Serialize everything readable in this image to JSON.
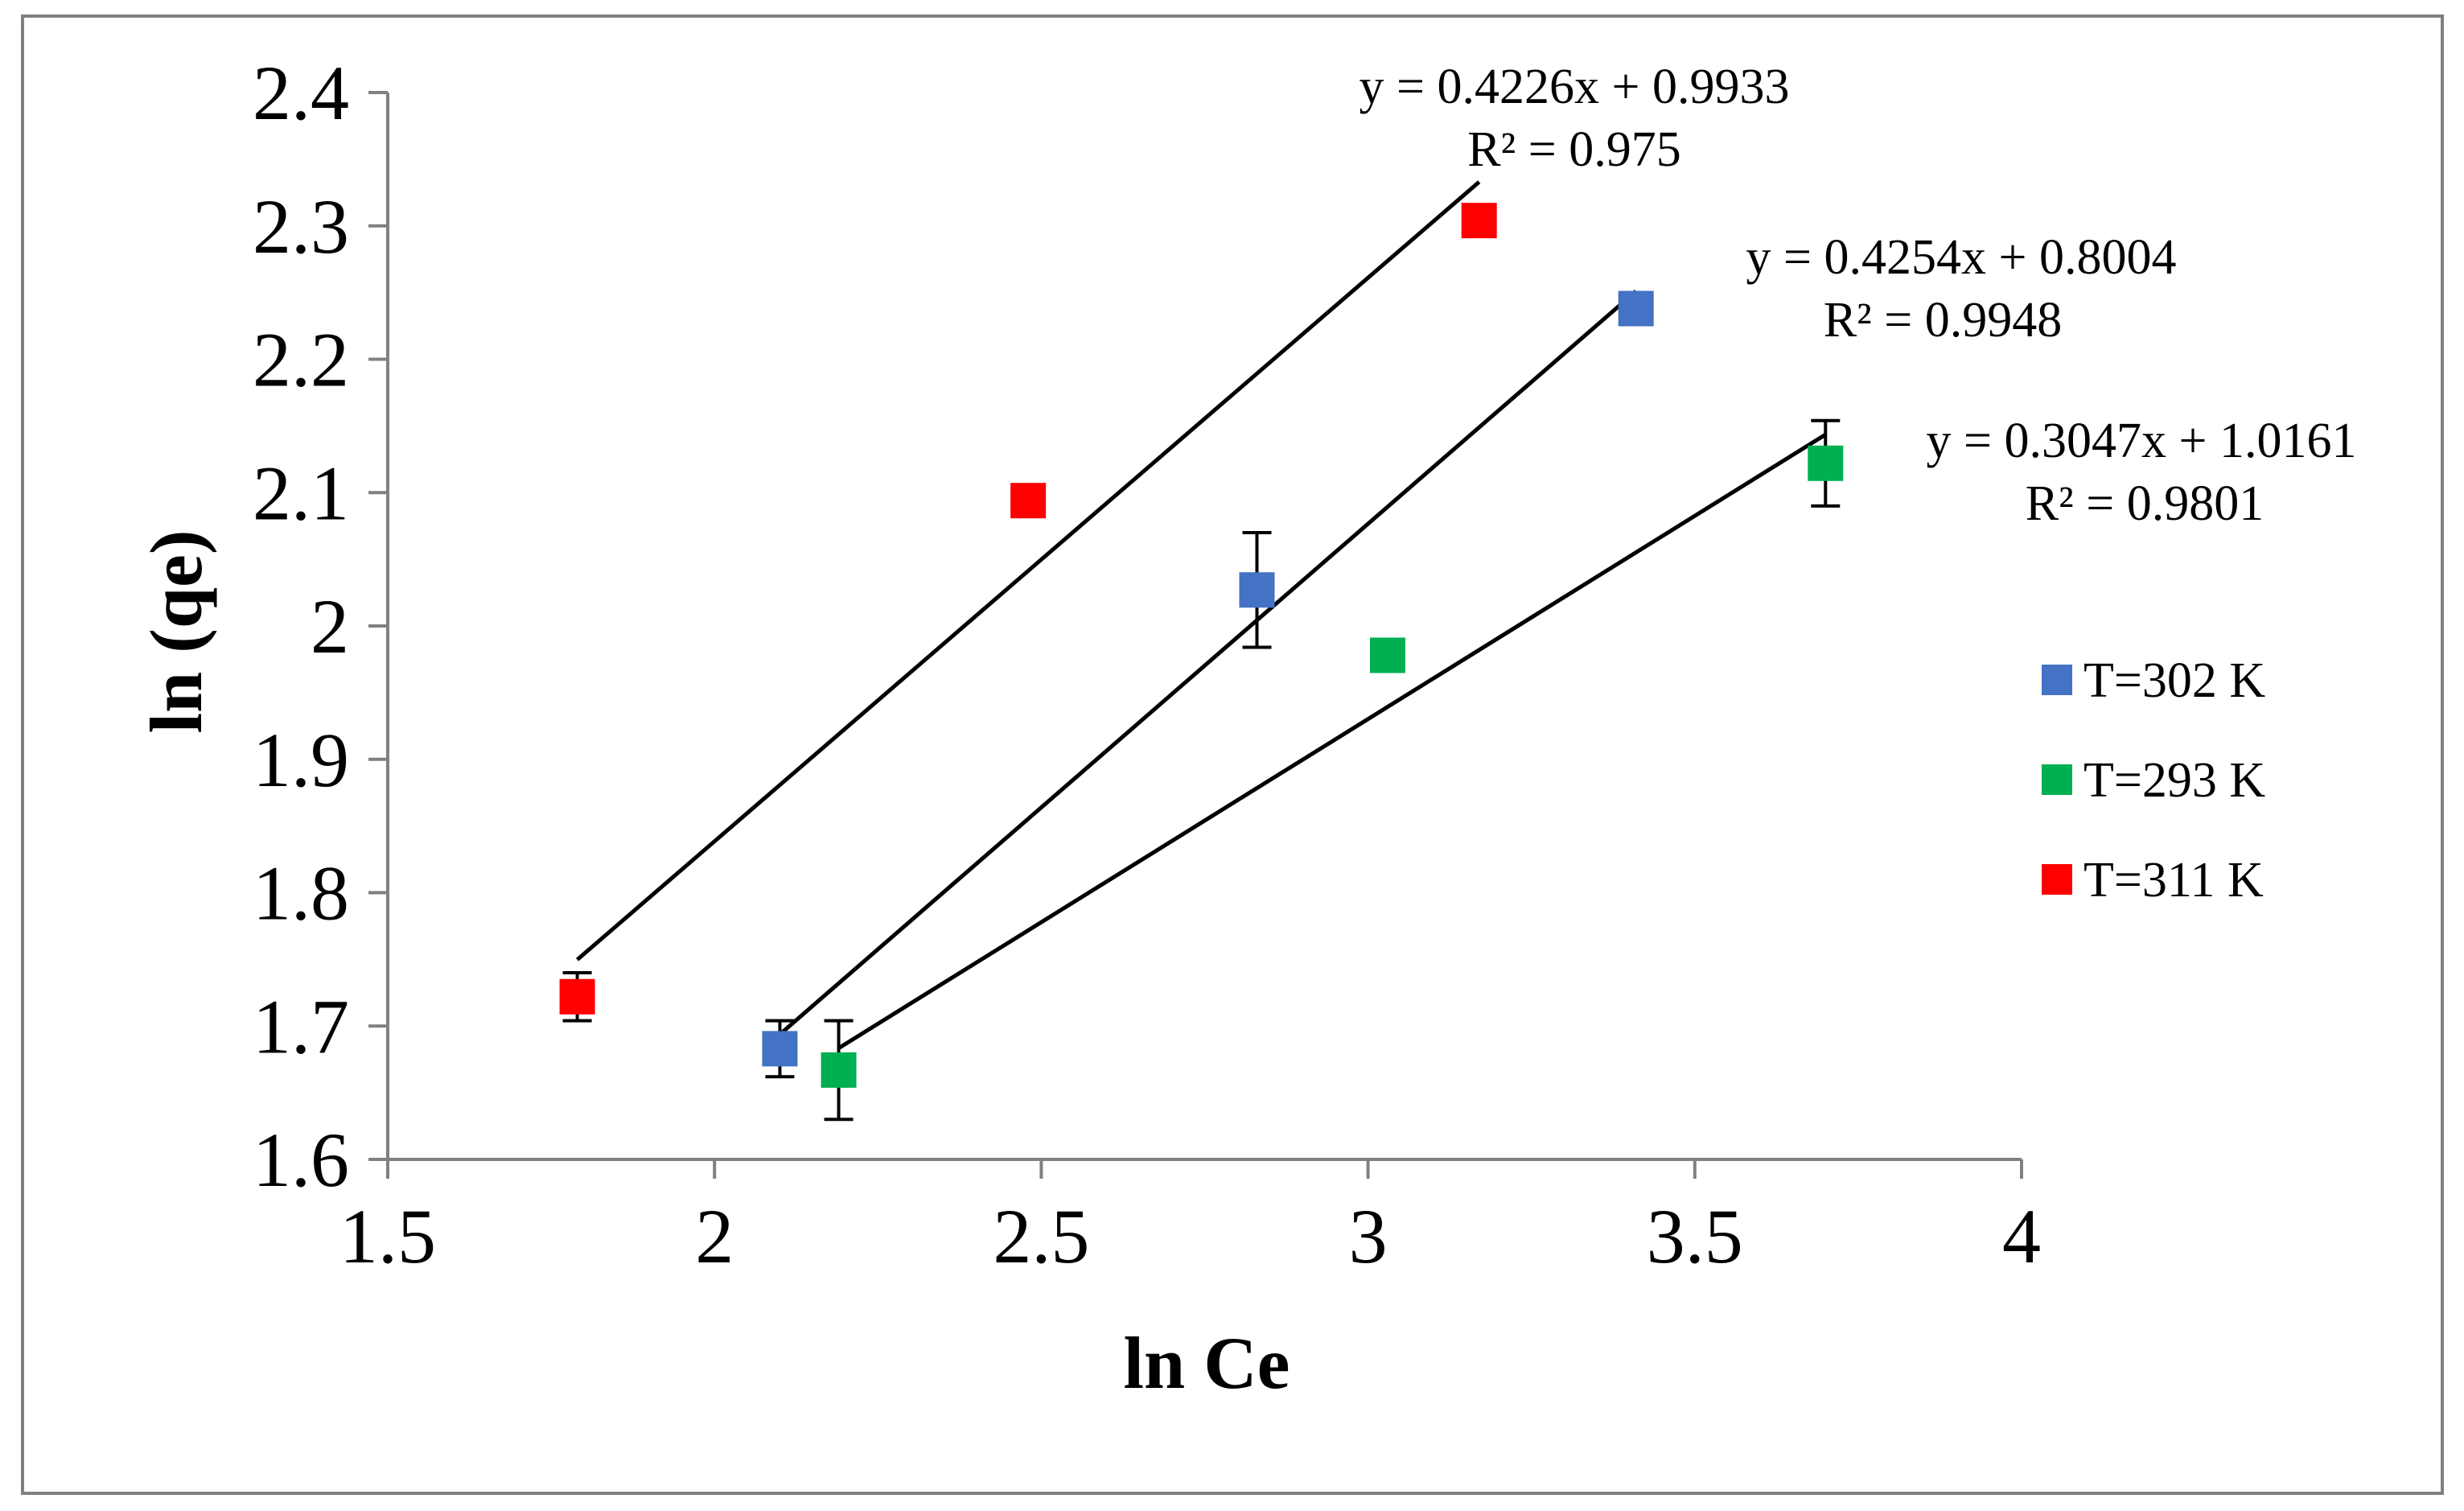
{
  "chart_data": {
    "type": "scatter",
    "title": "",
    "xlabel": "ln Ce",
    "ylabel": "ln (qe)",
    "xlim": [
      1.5,
      4
    ],
    "ylim": [
      1.6,
      2.4
    ],
    "xticks": [
      "1.5",
      "2",
      "2.5",
      "3",
      "3.5",
      "4"
    ],
    "yticks": [
      "1.6",
      "1.7",
      "1.8",
      "1.9",
      "2",
      "2.1",
      "2.2",
      "2.3",
      "2.4"
    ],
    "grid": false,
    "legend_position": "right",
    "series": [
      {
        "name": "T=302 K",
        "color": "#4472C4",
        "marker": "square",
        "x": [
          2.1,
          2.83,
          3.41
        ],
        "y": [
          1.683,
          2.027,
          2.238
        ],
        "error": [
          0.021,
          0.043,
          0
        ],
        "trendline": {
          "slope": 0.4254,
          "intercept": 0.8004,
          "x_range": [
            2.1,
            3.41
          ],
          "equation": "y = 0.4254x + 0.8004",
          "r2": "R² = 0.9948"
        }
      },
      {
        "name": "T=293 K",
        "color": "#00B050",
        "marker": "square",
        "x": [
          2.19,
          3.03,
          3.7
        ],
        "y": [
          1.667,
          1.978,
          2.122
        ],
        "error": [
          0.037,
          0.012,
          0.032
        ],
        "trendline": {
          "slope": 0.3047,
          "intercept": 1.0161,
          "x_range": [
            2.19,
            3.7
          ],
          "equation": "y = 0.3047x + 1.0161",
          "r2": "R² = 0.9801"
        }
      },
      {
        "name": "T=311 K",
        "color": "#FF0000",
        "marker": "square",
        "x": [
          1.79,
          2.48,
          3.17
        ],
        "y": [
          1.722,
          2.094,
          2.304
        ],
        "error": [
          0.018,
          0,
          0
        ],
        "trendline": {
          "slope": 0.4226,
          "intercept": 0.9933,
          "x_range": [
            1.79,
            3.17
          ],
          "equation": "y = 0.4226x + 0.9933",
          "r2": "R² = 0.975"
        }
      }
    ],
    "legend_order": [
      0,
      1,
      2
    ],
    "colors": {
      "frame": "#808080",
      "axis": "#808080",
      "trendline": "#000000"
    }
  }
}
